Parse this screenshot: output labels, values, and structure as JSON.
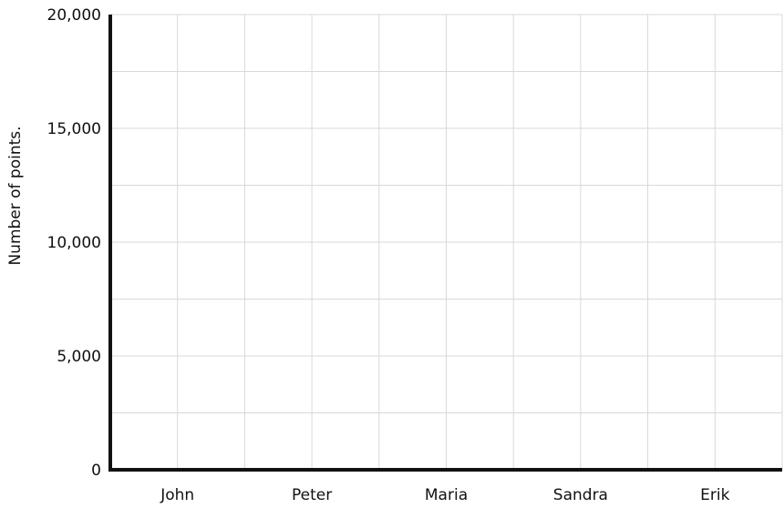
{
  "chart_data": {
    "type": "bar",
    "title": "",
    "xlabel": "",
    "ylabel": "Number of points.",
    "categories": [
      "John",
      "Peter",
      "Maria",
      "Sandra",
      "Erik"
    ],
    "values": [
      0,
      0,
      0,
      0,
      0
    ],
    "ylim": [
      0,
      20000
    ],
    "yticks": [
      0,
      5000,
      10000,
      15000,
      20000
    ],
    "ytick_labels": [
      "0",
      "5,000",
      "10,000",
      "15,000",
      "20,000"
    ],
    "grid": true,
    "colors": {
      "axis": "#111111",
      "grid": "#d9d9d9"
    }
  }
}
